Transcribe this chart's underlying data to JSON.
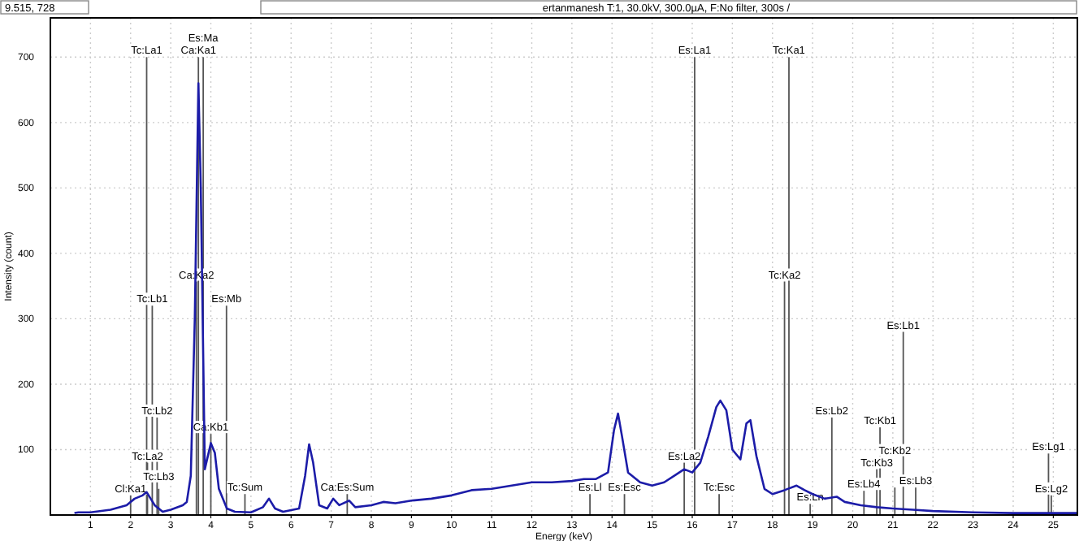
{
  "chart_data": {
    "type": "line",
    "title": "ertanmanesh T:1, 30.0kV, 300.0µA, F:No filter, 300s /",
    "subtitle": "9.515, 728",
    "xlabel": "Energy (keV)",
    "ylabel": "Intensity (count)",
    "xlim": [
      0,
      25.6
    ],
    "ylim": [
      0,
      760
    ],
    "xticks": [
      1,
      2,
      3,
      4,
      5,
      6,
      7,
      8,
      9,
      10,
      11,
      12,
      13,
      14,
      15,
      16,
      17,
      18,
      19,
      20,
      21,
      22,
      23,
      24,
      25
    ],
    "yticks": [
      100,
      200,
      300,
      400,
      500,
      600,
      700
    ],
    "grid": true,
    "line_style": "solid",
    "marker": "none",
    "series": [
      {
        "color": "#1c1ca8",
        "x": [
          0.6,
          0.7,
          1.0,
          1.5,
          1.9,
          2.1,
          2.3,
          2.4,
          2.6,
          2.8,
          3.0,
          3.3,
          3.4,
          3.5,
          3.6,
          3.69,
          3.75,
          3.85,
          4.0,
          4.1,
          4.2,
          4.4,
          4.6,
          5.0,
          5.3,
          5.45,
          5.6,
          5.8,
          6.2,
          6.35,
          6.45,
          6.55,
          6.7,
          6.9,
          7.05,
          7.2,
          7.45,
          7.6,
          8.0,
          8.3,
          8.6,
          9.0,
          9.5,
          10.0,
          10.5,
          11.0,
          11.5,
          12.0,
          12.5,
          13.0,
          13.3,
          13.6,
          13.9,
          14.05,
          14.15,
          14.25,
          14.4,
          14.7,
          15.0,
          15.3,
          15.6,
          15.8,
          16.0,
          16.2,
          16.4,
          16.6,
          16.7,
          16.85,
          17.0,
          17.2,
          17.35,
          17.45,
          17.6,
          17.8,
          18.0,
          18.3,
          18.6,
          18.8,
          19.0,
          19.3,
          19.6,
          19.8,
          20.2,
          20.6,
          21.0,
          21.5,
          22.0,
          23.0,
          24.0,
          25.0,
          25.6
        ],
        "values": [
          3,
          4,
          4,
          8,
          15,
          25,
          30,
          35,
          15,
          5,
          8,
          15,
          20,
          60,
          300,
          660,
          500,
          70,
          110,
          95,
          40,
          10,
          5,
          4,
          12,
          25,
          10,
          5,
          10,
          60,
          108,
          80,
          15,
          10,
          25,
          15,
          22,
          12,
          15,
          20,
          18,
          22,
          25,
          30,
          38,
          40,
          45,
          50,
          50,
          52,
          55,
          55,
          65,
          130,
          155,
          120,
          65,
          50,
          45,
          50,
          62,
          70,
          65,
          80,
          120,
          165,
          175,
          160,
          100,
          85,
          140,
          145,
          90,
          40,
          32,
          38,
          45,
          38,
          32,
          25,
          28,
          20,
          15,
          12,
          10,
          8,
          6,
          4,
          3,
          3,
          3
        ]
      },
      {
        "type": "bar",
        "color": "#555555",
        "x": [
          2.0,
          2.4,
          2.42,
          2.54,
          2.66,
          2.7,
          3.64,
          3.69,
          3.81,
          4.0,
          4.39,
          4.85,
          7.4,
          13.45,
          14.31,
          15.8,
          16.06,
          16.67,
          18.3,
          18.41,
          18.94,
          19.48,
          20.28,
          20.6,
          20.68,
          21.05,
          21.26,
          21.57,
          24.88,
          24.95
        ],
        "values": [
          30,
          700,
          80,
          320,
          149,
          40,
          357,
          700,
          700,
          124,
          320,
          32,
          32,
          32,
          32,
          80,
          700,
          32,
          357,
          700,
          17,
          149,
          37,
          70,
          134,
          42,
          280,
          42,
          94,
          30
        ],
        "value_labels": [
          "Cl:Ka1",
          "Tc:La1",
          "Tc:La2",
          "Tc:Lb1",
          "Tc:Lb2",
          "Tc:Lb3",
          "Ca:Ka2",
          "Ca:Ka1",
          "Es:Ma",
          "Ca:Kb1",
          "Es:Mb",
          "Tc:Sum",
          "Ca:Es:Sum",
          "Es:Ll",
          "Es:Esc",
          "Es:La2",
          "Es:La1",
          "Tc:Esc",
          "Tc:Ka2",
          "Tc:Ka1",
          "Es:Ln",
          "Es:Lb2",
          "Es:Lb4",
          "Tc:Kb3",
          "Tc:Kb1",
          "Tc:Kb2",
          "Es:Lb1",
          "Es:Lb3",
          "Es:Lg1",
          "Es:Lg2"
        ]
      }
    ]
  }
}
